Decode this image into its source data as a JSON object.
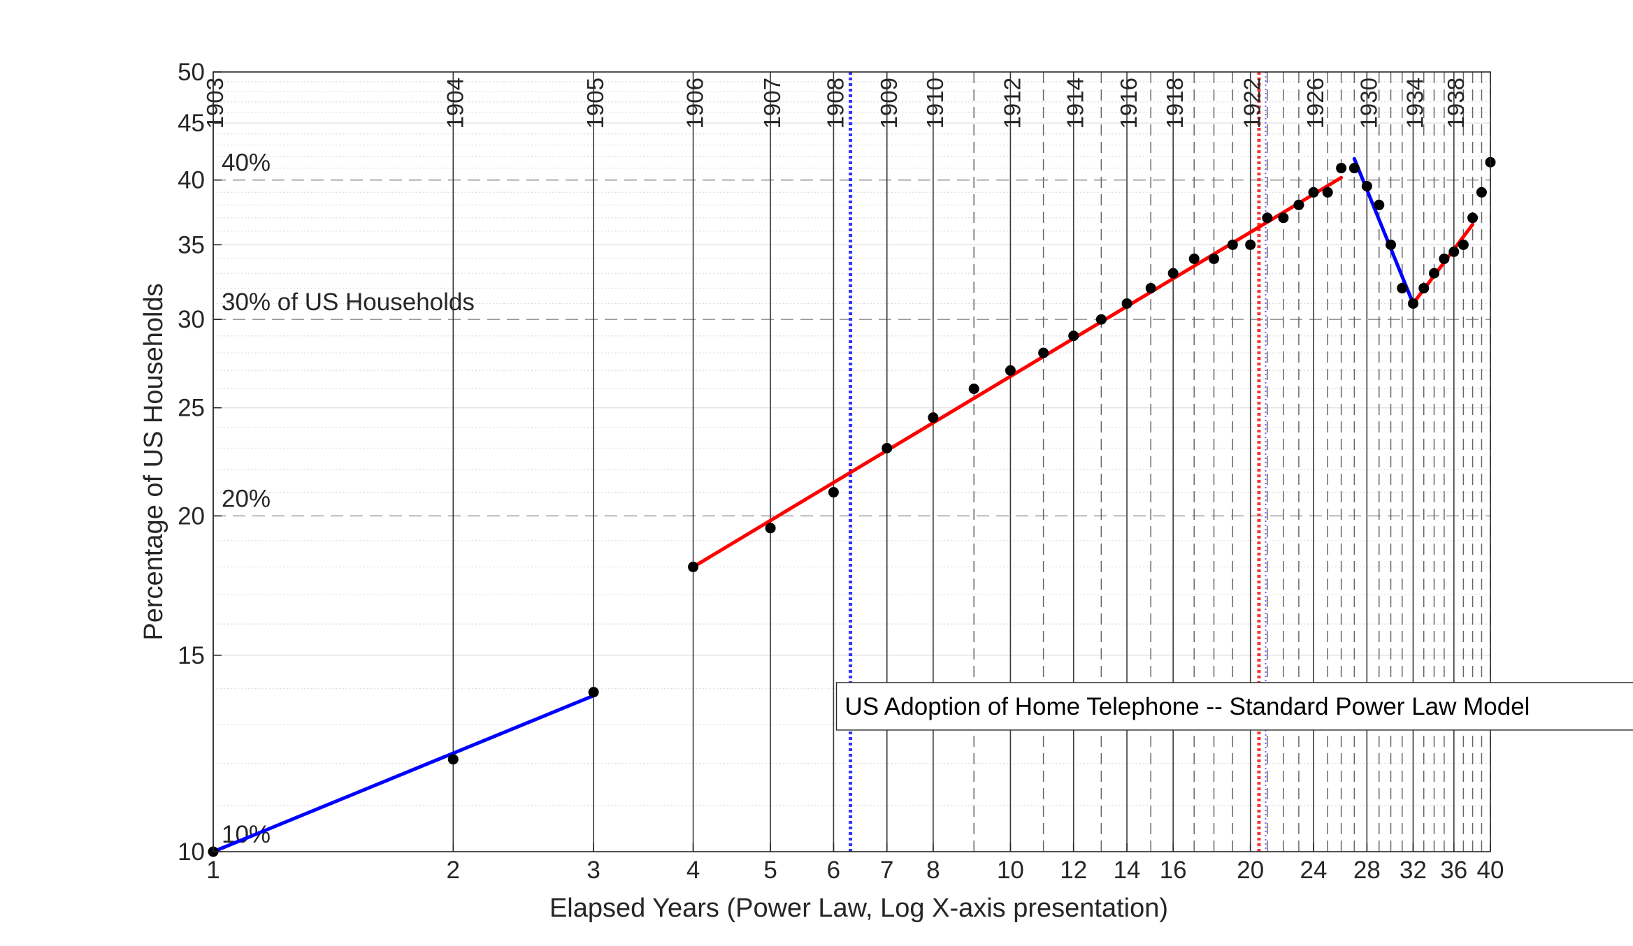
{
  "chart_data": {
    "type": "scatter",
    "title": "US Adoption of Home Telephone -- Standard Power Law Model",
    "xlabel": "Elapsed Years (Power Law, Log X-axis presentation)",
    "ylabel": "Percentage of US Households",
    "x_scale": "log",
    "y_scale": "log",
    "xlim": [
      1,
      40
    ],
    "ylim": [
      10,
      50
    ],
    "grid": true,
    "x_ticks": [
      1,
      2,
      3,
      4,
      5,
      6,
      7,
      8,
      10,
      12,
      14,
      16,
      20,
      24,
      28,
      32,
      36,
      40
    ],
    "y_ticks": [
      10,
      15,
      20,
      25,
      30,
      35,
      40,
      45,
      50
    ],
    "year_markers": [
      {
        "x": 1,
        "label": "1903"
      },
      {
        "x": 2,
        "label": "1904"
      },
      {
        "x": 3,
        "label": "1905"
      },
      {
        "x": 4,
        "label": "1906"
      },
      {
        "x": 5,
        "label": "1907"
      },
      {
        "x": 6,
        "label": "1908"
      },
      {
        "x": 7,
        "label": "1909"
      },
      {
        "x": 8,
        "label": "1910"
      },
      {
        "x": 10,
        "label": "1912"
      },
      {
        "x": 12,
        "label": "1914"
      },
      {
        "x": 14,
        "label": "1916"
      },
      {
        "x": 16,
        "label": "1918"
      },
      {
        "x": 20,
        "label": "1922"
      },
      {
        "x": 24,
        "label": "1926"
      },
      {
        "x": 28,
        "label": "1930"
      },
      {
        "x": 32,
        "label": "1934"
      },
      {
        "x": 36,
        "label": "1938"
      }
    ],
    "percent_labels": [
      {
        "y": 40,
        "label": "40%"
      },
      {
        "y": 30,
        "label": "30% of US Households"
      },
      {
        "y": 20,
        "label": "20%"
      },
      {
        "y": 10,
        "label": "10%"
      }
    ],
    "series": [
      {
        "type": "scatter",
        "color": "#000000",
        "points": [
          [
            1,
            10.0
          ],
          [
            2,
            12.1
          ],
          [
            3,
            13.9
          ],
          [
            4,
            18.0
          ],
          [
            5,
            19.5
          ],
          [
            6,
            21.0
          ],
          [
            7,
            23.0
          ],
          [
            8,
            24.5
          ],
          [
            9,
            26.0
          ],
          [
            10,
            27.0
          ],
          [
            11,
            28.0
          ],
          [
            12,
            29.0
          ],
          [
            13,
            30.0
          ],
          [
            14,
            31.0
          ],
          [
            15,
            32.0
          ],
          [
            16,
            33.0
          ],
          [
            17,
            34.0
          ],
          [
            18,
            34.0
          ],
          [
            19,
            35.0
          ],
          [
            20,
            35.0
          ],
          [
            21,
            37.0
          ],
          [
            22,
            37.0
          ],
          [
            23,
            38.0
          ],
          [
            24,
            39.0
          ],
          [
            25,
            39.0
          ],
          [
            26,
            41.0
          ],
          [
            27,
            41.0
          ],
          [
            28,
            39.5
          ],
          [
            29,
            38.0
          ],
          [
            30,
            35.0
          ],
          [
            31,
            32.0
          ],
          [
            32,
            31.0
          ],
          [
            33,
            32.0
          ],
          [
            34,
            33.0
          ],
          [
            35,
            34.0
          ],
          [
            36,
            34.5
          ],
          [
            37,
            35.0
          ],
          [
            38,
            37.0
          ],
          [
            39,
            39.0
          ],
          [
            40,
            41.5
          ]
        ]
      },
      {
        "type": "line",
        "color": "#0000ff",
        "points": [
          [
            1,
            10.0
          ],
          [
            3,
            13.8
          ]
        ]
      },
      {
        "type": "line",
        "color": "#ff0000",
        "points": [
          [
            4,
            18.0
          ],
          [
            26,
            40.2
          ]
        ]
      },
      {
        "type": "line",
        "color": "#0000ff",
        "points": [
          [
            27,
            41.8
          ],
          [
            32,
            31.0
          ]
        ]
      },
      {
        "type": "line",
        "color": "#ff0000",
        "points": [
          [
            32,
            31.0
          ],
          [
            38,
            36.5
          ]
        ]
      }
    ],
    "vlines": [
      {
        "x": 6.3,
        "color": "#3333ff",
        "style": "dotted"
      },
      {
        "x": 20.5,
        "color": "#ff3333",
        "style": "dotted"
      },
      {
        "x": 20.9,
        "color": "#6666ff",
        "style": "dotted"
      }
    ],
    "annotation_box": {
      "x": 6.05,
      "y": 13.5
    }
  }
}
